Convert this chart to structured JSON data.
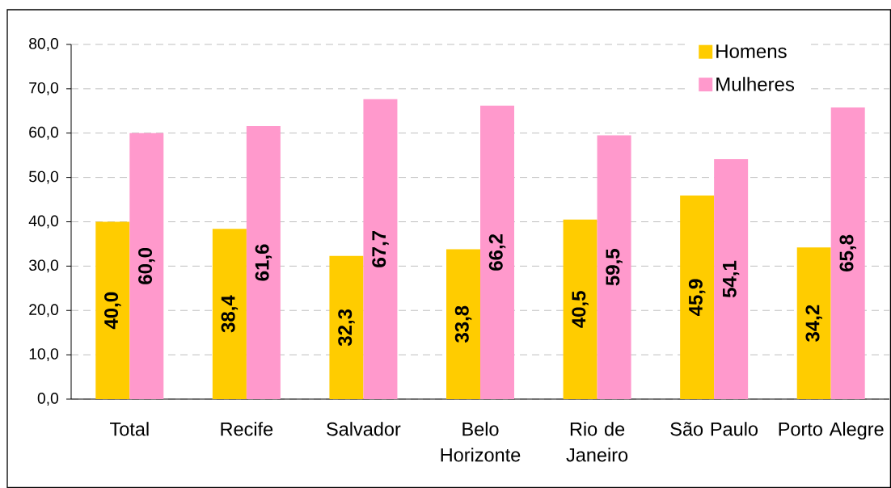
{
  "chart_data": {
    "type": "bar",
    "categories": [
      "Total",
      "Recife",
      "Salvador",
      "Belo Horizonte",
      "Rio de Janeiro",
      "São Paulo",
      "Porto Alegre"
    ],
    "series": [
      {
        "name": "Homens",
        "color": "#ffcc00",
        "values": [
          40.0,
          38.4,
          32.3,
          33.8,
          40.5,
          45.9,
          34.2
        ],
        "value_labels": [
          "40,0",
          "38,4",
          "32,3",
          "33,8",
          "40,5",
          "45,9",
          "34,2"
        ]
      },
      {
        "name": "Mulheres",
        "color": "#ff99cc",
        "values": [
          60.0,
          61.6,
          67.7,
          66.2,
          59.5,
          54.1,
          65.8
        ],
        "value_labels": [
          "60,0",
          "61,6",
          "67,7",
          "66,2",
          "59,5",
          "54,1",
          "65,8"
        ]
      }
    ],
    "ylim": [
      0,
      80
    ],
    "yticks": [
      {
        "value": 0,
        "label": "0,0"
      },
      {
        "value": 10,
        "label": "10,0"
      },
      {
        "value": 20,
        "label": "20,0"
      },
      {
        "value": 30,
        "label": "30,0"
      },
      {
        "value": 40,
        "label": "40,0"
      },
      {
        "value": 50,
        "label": "50,0"
      },
      {
        "value": 60,
        "label": "60,0"
      },
      {
        "value": 70,
        "label": "70,0"
      },
      {
        "value": 80,
        "label": "80,0"
      }
    ],
    "grid": "y",
    "legend": "top right"
  }
}
